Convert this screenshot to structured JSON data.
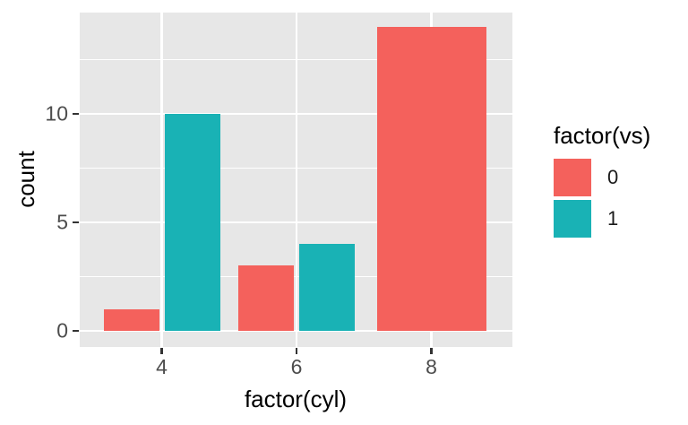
{
  "chart_data": {
    "type": "bar",
    "bar_position": "dodge",
    "title": "",
    "xlabel": "factor(cyl)",
    "ylabel": "count",
    "categories": [
      "4",
      "6",
      "8"
    ],
    "series": [
      {
        "name": "0",
        "color": "#F4615C",
        "values": [
          1,
          3,
          14
        ]
      },
      {
        "name": "1",
        "color": "#19B2B5",
        "values": [
          10,
          4,
          0
        ]
      }
    ],
    "yticks": [
      0,
      5,
      10
    ],
    "yticks_minor": [
      2.5,
      7.5,
      12.5
    ],
    "ylim": [
      -0.7,
      14.7
    ],
    "grid": true,
    "legend": {
      "title": "factor(vs)",
      "position": "right",
      "entries": [
        {
          "label": "0",
          "color": "#F4615C"
        },
        {
          "label": "1",
          "color": "#19B2B5"
        }
      ]
    }
  },
  "theme": {
    "background": "#FFFFFF",
    "panel_background": "#E7E7E7",
    "grid_color": "#FFFFFF",
    "tick_mark_color": "#333333",
    "tick_label_color": "#4D4D4D",
    "title_color": "#000000"
  }
}
